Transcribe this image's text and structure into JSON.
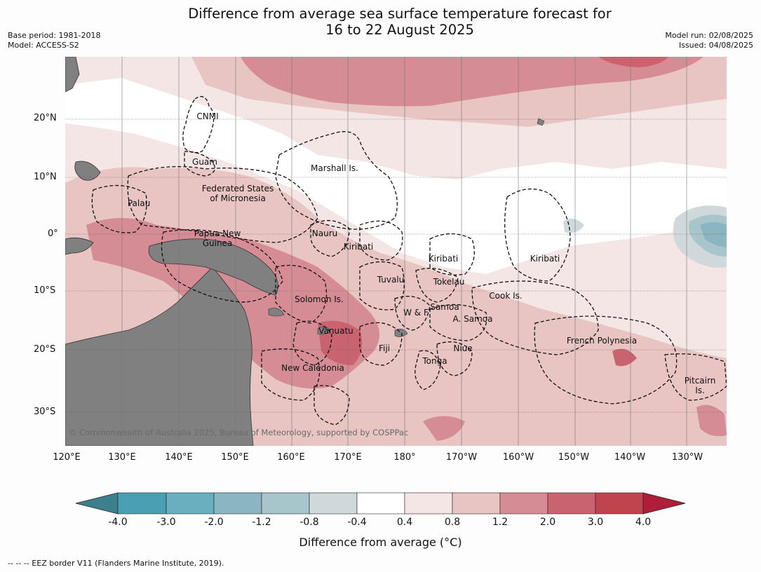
{
  "header": {
    "title_line1": "Difference from average sea surface temperature forecast for",
    "title_line2": "16 to 22 August 2025",
    "base_period": "Base period: 1981-2018",
    "model": "Model: ACCESS-S2",
    "model_run": "Model run: 02/08/2025",
    "issued": "Issued: 04/08/2025"
  },
  "map": {
    "lat_labels": [
      "20°N",
      "10°N",
      "0°",
      "10°S",
      "20°S",
      "30°S"
    ],
    "lon_labels": [
      "120°E",
      "130°E",
      "140°E",
      "150°E",
      "160°E",
      "170°E",
      "180°",
      "170°W",
      "160°W",
      "150°W",
      "140°W",
      "130°W"
    ],
    "region_labels": [
      "CNMI",
      "Guam",
      "Marshall Is.",
      "Federated States",
      "of Micronesia",
      "Palau",
      "Papua New",
      "Guinea",
      "Nauru",
      "Kiribati",
      "Kiribati",
      "Kiribati",
      "Tuvalu",
      "Tokelau",
      "Solomon Is.",
      "W & F",
      "Samoa",
      "A. Samoa",
      "Cook Is.",
      "Vanuatu",
      "Fiji",
      "Niue",
      "French Polynesia",
      "Tonga",
      "New Caledonia",
      "Pitcairn",
      "Is."
    ],
    "copyright": "© Commonwealth of Australia 2025, Bureau of Meteorology, supported by COSPPac"
  },
  "colorbar": {
    "ticks": [
      "-4.0",
      "-3.0",
      "-2.0",
      "-1.2",
      "-0.8",
      "-0.4",
      "0.4",
      "0.8",
      "1.2",
      "2.0",
      "3.0",
      "4.0"
    ],
    "colors": [
      "#3d808d",
      "#4aa0b2",
      "#6aafbf",
      "#8ab6c2",
      "#a8c5cb",
      "#cfd9dc",
      "#ffffff",
      "#f4e6e5",
      "#e8c4c2",
      "#d58c94",
      "#c9636f",
      "#c0444f",
      "#b01e3a"
    ],
    "label": "Difference from average (°C)"
  },
  "footer": {
    "legend_note": "-- -- -- EEZ border V11 (Flanders Marine Institute, 2019)."
  }
}
